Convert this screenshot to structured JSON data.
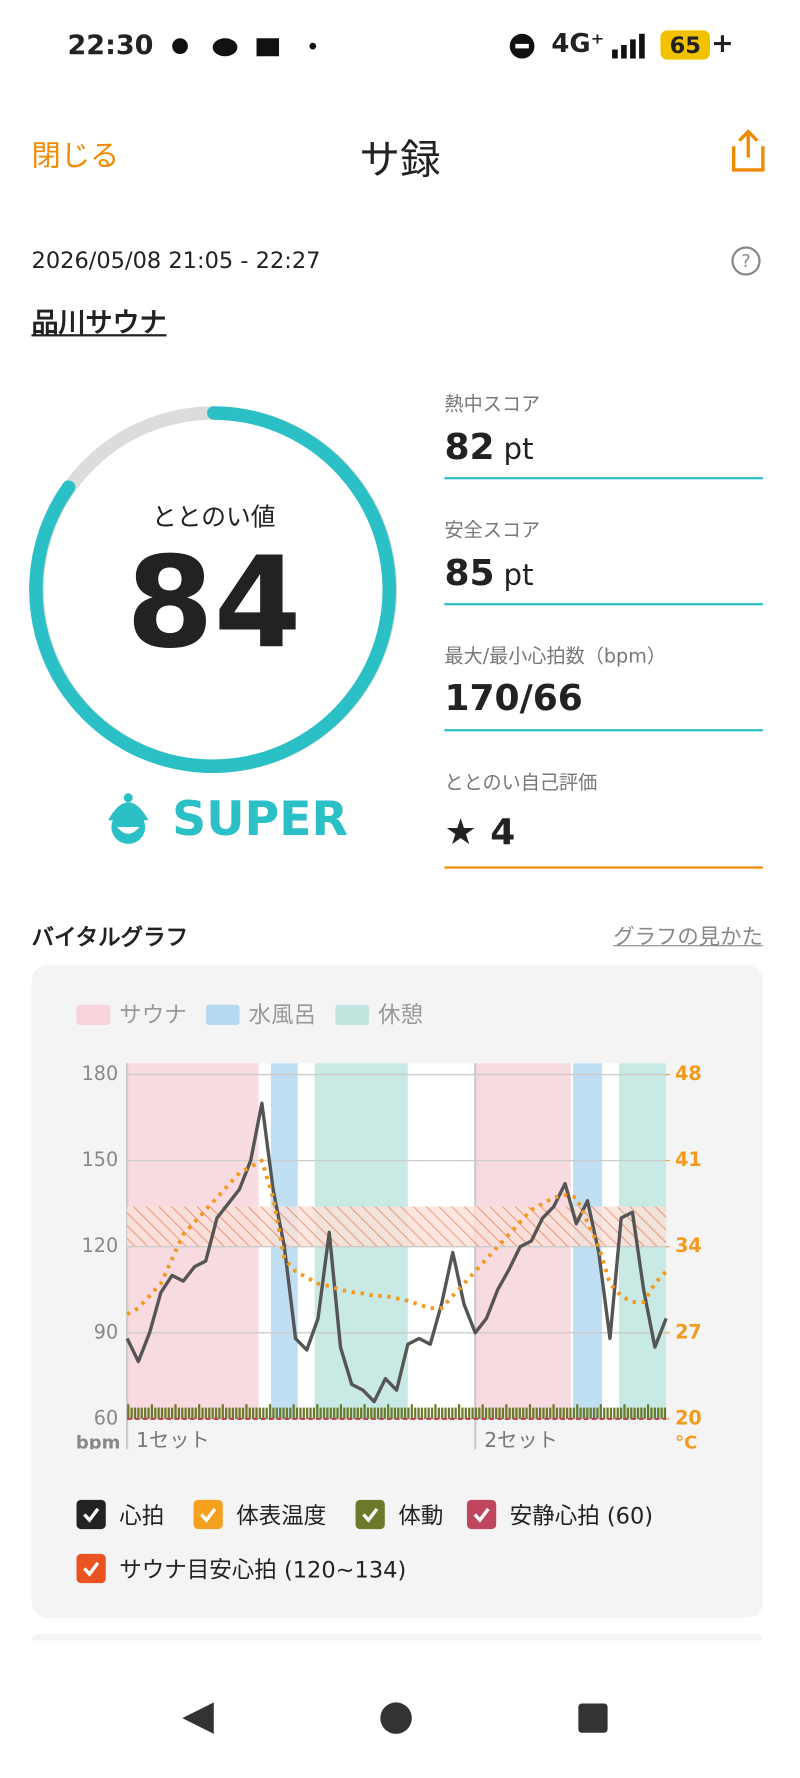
{
  "status_bar": {
    "time": "22:30",
    "network": "4G⁺",
    "battery": "65"
  },
  "header": {
    "close": "閉じる",
    "title": "サ録"
  },
  "session": {
    "datetime": "2026/05/08 21:05 - 22:27",
    "facility": "品川サウナ"
  },
  "totonoi": {
    "label": "ととのい値",
    "value": 84,
    "rank": "SUPER"
  },
  "metrics": [
    {
      "label": "熱中スコア",
      "value": 82,
      "unit": "pt"
    },
    {
      "label": "安全スコア",
      "value": 85,
      "unit": "pt"
    },
    {
      "label": "最大/最小心拍数（bpm）",
      "value": "170/66"
    },
    {
      "label": "ととのい自己評価",
      "value": 4
    }
  ],
  "vital_graph": {
    "title": "バイタルグラフ",
    "help_link": "グラフの見かた",
    "chart_data": {
      "type": "line",
      "phase_legend": [
        {
          "name": "サウナ",
          "color": "#f7d3dc"
        },
        {
          "name": "水風呂",
          "color": "#b5d9f0"
        },
        {
          "name": "休憩",
          "color": "#bfe6df"
        }
      ],
      "x": [
        0,
        1,
        2,
        3,
        4,
        5,
        6,
        7,
        8,
        9,
        10,
        11,
        12,
        13,
        14,
        15,
        16,
        17,
        18,
        19,
        20,
        21,
        22,
        23,
        24,
        25,
        26,
        27,
        28,
        29,
        30,
        31,
        32,
        33,
        34,
        35,
        36,
        37,
        38,
        39,
        40,
        41,
        42,
        43,
        44,
        45,
        46,
        47,
        48
      ],
      "xlim": [
        0,
        48
      ],
      "ylim": [
        60,
        180
      ],
      "yticks": [
        60,
        90,
        120,
        150,
        180
      ],
      "y_label": "bpm",
      "y2lim": [
        20,
        48
      ],
      "y2ticks": [
        20,
        27,
        34,
        41,
        48
      ],
      "y2_label": "°C",
      "grid": true,
      "series": [
        {
          "name": "心拍",
          "color": "#555555",
          "values": [
            88,
            80,
            90,
            104,
            110,
            108,
            113,
            115,
            130,
            135,
            140,
            150,
            170,
            140,
            120,
            88,
            84,
            95,
            125,
            85,
            72,
            70,
            66,
            74,
            70,
            86,
            88,
            86,
            100,
            118,
            100,
            90,
            95,
            105,
            112,
            120,
            122,
            130,
            134,
            142,
            128,
            136,
            118,
            88,
            130,
            132,
            105,
            85,
            95
          ]
        },
        {
          "name": "体表温度",
          "color": "#f39a1e",
          "axis": "y2",
          "values": [
            28.5,
            29,
            30,
            31,
            33,
            35,
            36,
            37,
            38,
            39,
            40,
            40.5,
            41,
            38,
            33,
            32,
            31.5,
            31,
            30.8,
            30.5,
            30.3,
            30.2,
            30,
            30,
            29.8,
            29.6,
            29.3,
            29,
            29,
            30,
            31,
            32,
            33,
            34,
            35,
            36,
            37,
            37.5,
            38,
            38.2,
            38,
            36,
            34,
            31,
            30,
            29.5,
            29.5,
            31,
            32
          ]
        }
      ],
      "sets": [
        {
          "label": "1セット",
          "start": 0,
          "sauna": [
            0,
            11.7
          ],
          "cold": [
            12.8,
            15.2
          ],
          "rest": [
            16.7,
            25
          ]
        },
        {
          "label": "2セット",
          "start": 31,
          "sauna": [
            31,
            39.5
          ],
          "cold": [
            39.7,
            42.3
          ],
          "rest": [
            43.8,
            48
          ]
        }
      ],
      "target_zone": [
        120,
        134
      ],
      "resting_hr": 60
    },
    "toggles": [
      {
        "label": "心拍",
        "color": "#222222"
      },
      {
        "label": "体表温度",
        "color": "#f5a01e"
      },
      {
        "label": "体動",
        "color": "#6b7a2a"
      },
      {
        "label": "安静心拍 (60)",
        "color": "#c0455f"
      },
      {
        "label": "サウナ目安心拍 (120~134)",
        "color": "#e8531f"
      }
    ]
  },
  "nav": {}
}
